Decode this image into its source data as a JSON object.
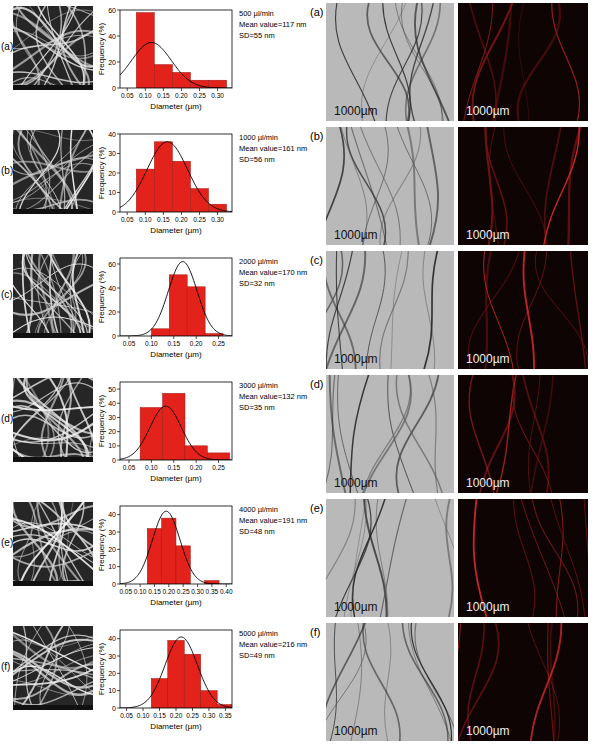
{
  "chart_data": [
    {
      "type": "histogram",
      "panel": "(a)",
      "xlabel": "Diameter (µm)",
      "ylabel": "Frequency (%)",
      "bins": [
        0.075,
        0.125,
        0.175,
        0.225,
        0.275,
        0.325
      ],
      "values": [
        58,
        18,
        12,
        6,
        6
      ],
      "color": "#e3231b",
      "xlim": [
        0.03,
        0.34
      ],
      "ylim": [
        0,
        60
      ],
      "xticks": [
        0.05,
        {
          "value": 0.1,
          "label": "0.10"
        },
        0.15,
        {
          "value": 0.2,
          "label": "0.20"
        },
        0.25,
        {
          "value": 0.3,
          "label": "0.30"
        }
      ],
      "yticks": [
        0,
        20,
        40,
        60
      ],
      "annotations": [
        "500 µl/min",
        "Mean value=117 nm",
        "SD=55 nm"
      ],
      "fit": {
        "mean": 0.117,
        "sd": 0.055,
        "peak": 35
      }
    },
    {
      "type": "histogram",
      "panel": "(b)",
      "xlabel": "Diameter (µm)",
      "ylabel": "Frequency (%)",
      "bins": [
        0.075,
        0.125,
        0.175,
        0.225,
        0.275,
        0.325
      ],
      "values": [
        22,
        36,
        26,
        12,
        4
      ],
      "color": "#e3231b",
      "xlim": [
        0.03,
        0.34
      ],
      "ylim": [
        0,
        40
      ],
      "xticks": [
        0.05,
        {
          "value": 0.1,
          "label": "0.10"
        },
        0.15,
        {
          "value": 0.2,
          "label": "0.20"
        },
        0.25,
        {
          "value": 0.3,
          "label": "0.30"
        }
      ],
      "yticks": [
        0,
        10,
        20,
        30,
        40
      ],
      "annotations": [
        "1000 µl/min",
        "Mean value=161 nm",
        "SD=56 nm"
      ],
      "fit": {
        "mean": 0.161,
        "sd": 0.056,
        "peak": 36
      }
    },
    {
      "type": "histogram",
      "panel": "(c)",
      "xlabel": "Diameter (µm)",
      "ylabel": "Frequency (%)",
      "bins": [
        0.1,
        0.14,
        0.18,
        0.22,
        0.26
      ],
      "values": [
        6,
        51,
        41,
        2
      ],
      "color": "#e3231b",
      "xlim": [
        0.03,
        0.28
      ],
      "ylim": [
        0,
        65
      ],
      "xticks": [
        0.05,
        {
          "value": 0.1,
          "label": "0.10"
        },
        0.15,
        {
          "value": 0.2,
          "label": "0.20"
        },
        0.25
      ],
      "yticks": [
        0,
        20,
        40,
        60
      ],
      "annotations": [
        "2000 µl/min",
        "Mean value=170 nm",
        "SD=32 nm"
      ],
      "fit": {
        "mean": 0.17,
        "sd": 0.032,
        "peak": 62
      }
    },
    {
      "type": "histogram",
      "panel": "(d)",
      "xlabel": "Diameter (µm)",
      "ylabel": "Frequency (%)",
      "bins": [
        0.075,
        0.125,
        0.175,
        0.225,
        0.275
      ],
      "values": [
        37,
        47,
        10,
        5
      ],
      "color": "#e3231b",
      "xlim": [
        0.03,
        0.28
      ],
      "ylim": [
        0,
        55
      ],
      "xticks": [
        0.05,
        {
          "value": 0.1,
          "label": "0.10"
        },
        0.15,
        {
          "value": 0.2,
          "label": "0.20"
        },
        0.25
      ],
      "yticks": [
        0,
        10,
        20,
        30,
        40,
        50
      ],
      "annotations": [
        "3000 µl/min",
        "Mean value=132 nm",
        "SD=35 nm"
      ],
      "fit": {
        "mean": 0.132,
        "sd": 0.035,
        "peak": 38
      }
    },
    {
      "type": "histogram",
      "panel": "(e)",
      "xlabel": "Diameter (µm)",
      "ylabel": "Frequency (%)",
      "bins": [
        0.125,
        0.175,
        0.225,
        0.275,
        0.325,
        0.375
      ],
      "values": [
        32,
        38,
        22,
        0,
        2
      ],
      "color": "#e3231b",
      "xlim": [
        0.03,
        0.42
      ],
      "ylim": [
        0,
        45
      ],
      "xticks": [
        0.05,
        {
          "value": 0.1,
          "label": "0.10"
        },
        0.15,
        {
          "value": 0.2,
          "label": "0.20"
        },
        0.25,
        {
          "value": 0.3,
          "label": "0.30"
        },
        0.35,
        {
          "value": 0.4,
          "label": "0.40"
        }
      ],
      "yticks": [
        0,
        10,
        20,
        30,
        40
      ],
      "annotations": [
        "4000 µl/min",
        "Mean value=191 nm",
        "SD=48 nm"
      ],
      "fit": {
        "mean": 0.191,
        "sd": 0.048,
        "peak": 42
      }
    },
    {
      "type": "histogram",
      "panel": "(f)",
      "xlabel": "Diameter (µm)",
      "ylabel": "Frequency (%)",
      "bins": [
        0.125,
        0.175,
        0.225,
        0.275,
        0.325,
        0.375
      ],
      "values": [
        17,
        39,
        31,
        10,
        2
      ],
      "color": "#e3231b",
      "xlim": [
        0.03,
        0.37
      ],
      "ylim": [
        0,
        45
      ],
      "xticks": [
        0.05,
        {
          "value": 0.1,
          "label": "0.10"
        },
        0.15,
        {
          "value": 0.2,
          "label": "0.20"
        },
        0.25,
        {
          "value": 0.3,
          "label": "0.30"
        },
        0.35
      ],
      "yticks": [
        0,
        10,
        20,
        30,
        40
      ],
      "annotations": [
        "5000 µl/min",
        "Mean value=216 nm",
        "SD=49 nm"
      ],
      "fit": {
        "mean": 0.216,
        "sd": 0.049,
        "peak": 41
      }
    }
  ],
  "micrographs": {
    "scale_bar": "1000µm"
  }
}
